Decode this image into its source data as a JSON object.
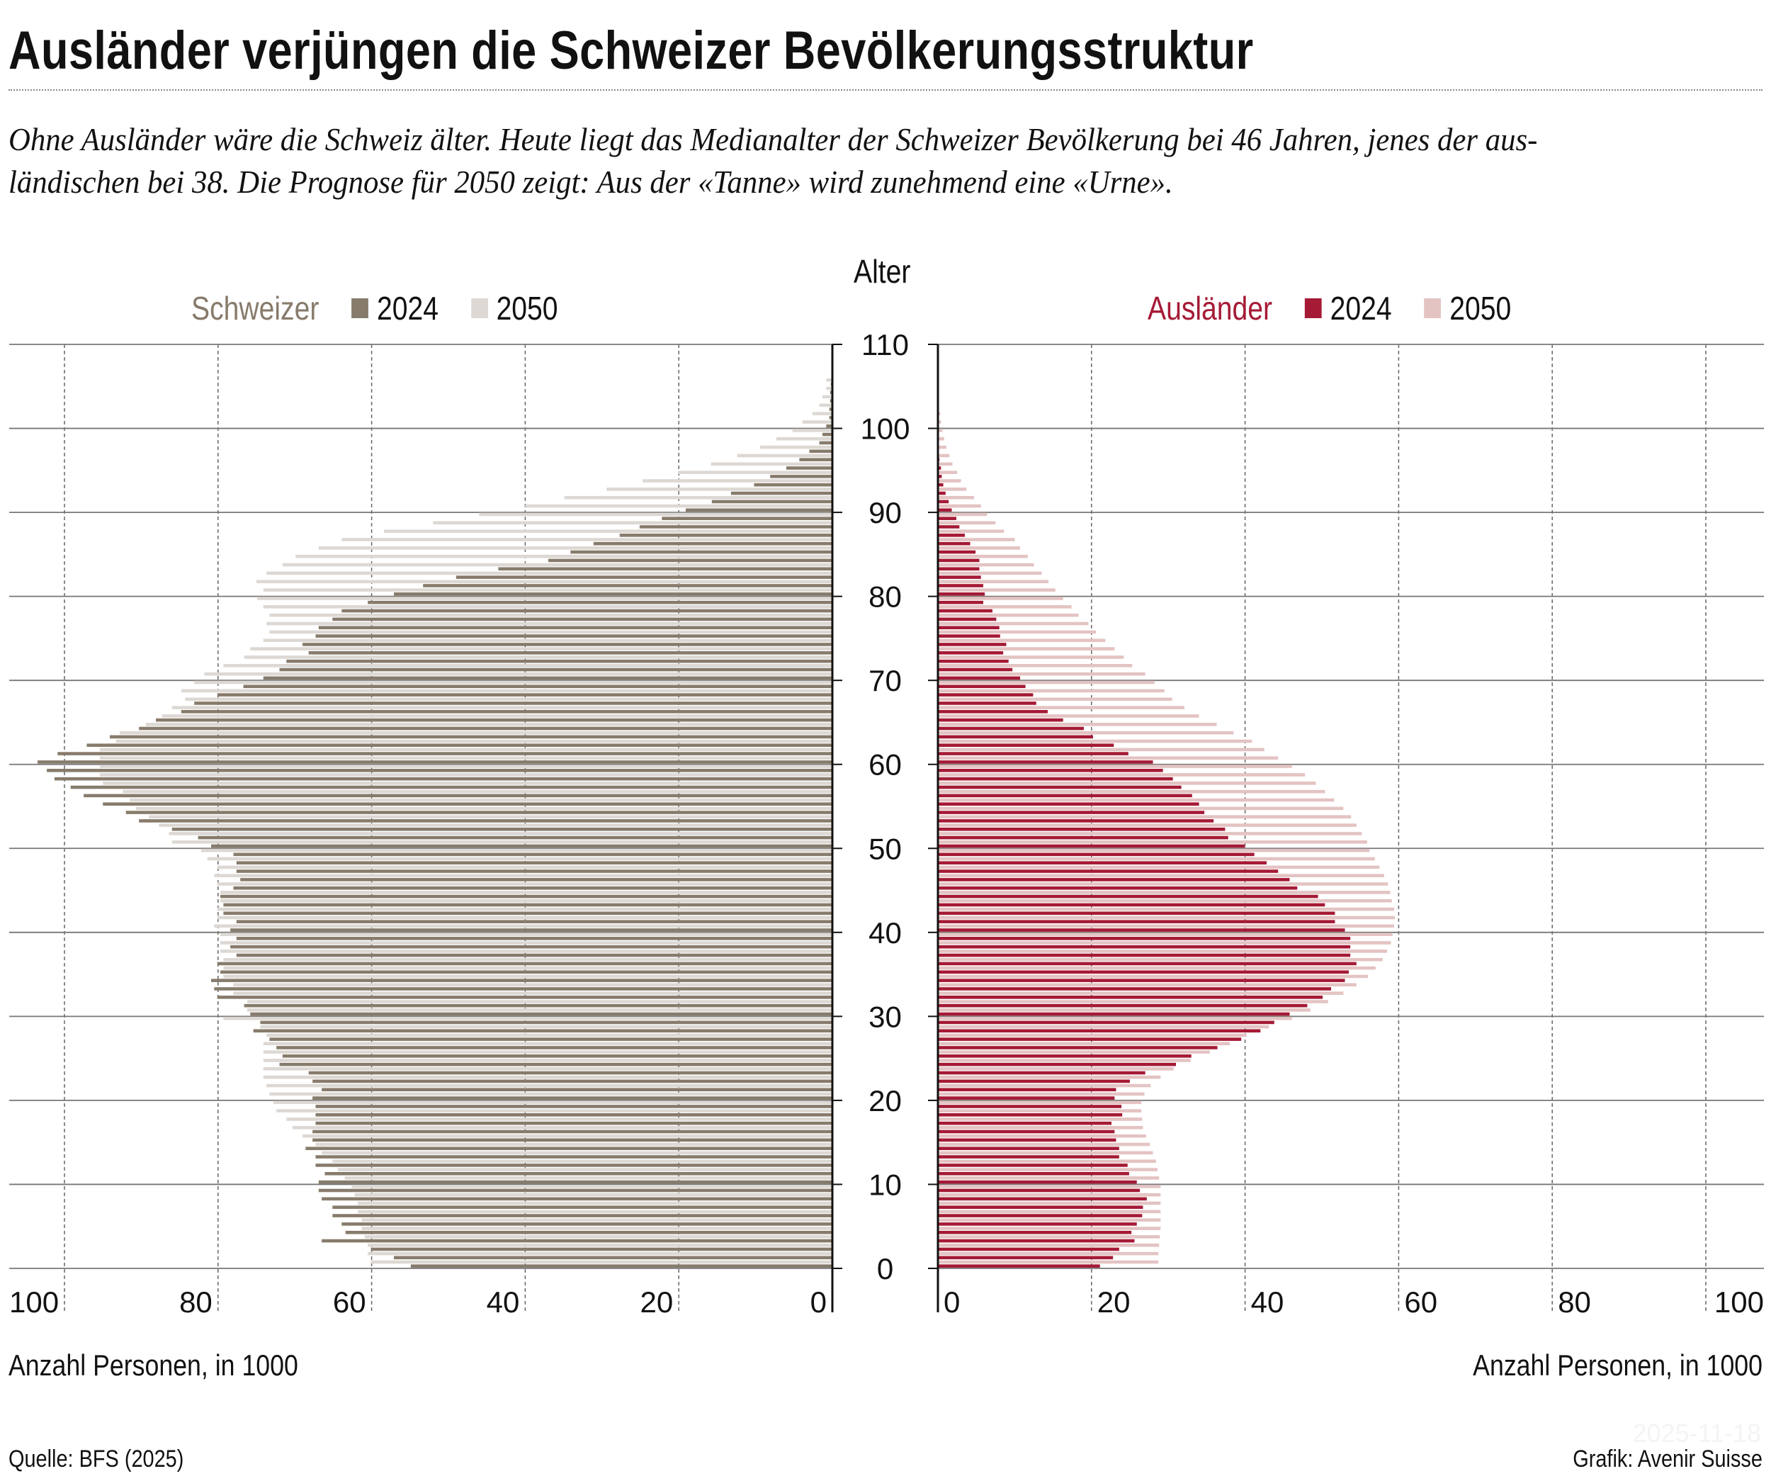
{
  "header": {
    "title": "Ausländer verjüngen die Schweizer Bevölkerungsstruktur",
    "subtitle_lines": [
      "Ohne Ausländer wäre die Schweiz älter. Heute liegt das Medianalter der Schweizer Bevölkerung bei 46 Jahren, jenes der aus-",
      "ländischen bei 38. Die Prognose für 2050 zeigt: Aus der «Tanne» wird zunehmend eine «Urne»."
    ]
  },
  "footer": {
    "source": "Quelle: BFS (2025)",
    "credit": "Grafik: Avenir Suisse",
    "date_watermark": "2025-11-18"
  },
  "chart_data": {
    "type": "bar",
    "orientation": "horizontal",
    "layout": "population-pyramid",
    "y_axis_label": "Alter",
    "y_ticks": [
      0,
      10,
      20,
      30,
      40,
      50,
      60,
      70,
      80,
      90,
      100,
      110
    ],
    "ylim": [
      0,
      110
    ],
    "categories_note": "age in years",
    "categories": [
      0,
      1,
      2,
      3,
      4,
      5,
      6,
      7,
      8,
      9,
      10,
      11,
      12,
      13,
      14,
      15,
      16,
      17,
      18,
      19,
      20,
      21,
      22,
      23,
      24,
      25,
      26,
      27,
      28,
      29,
      30,
      31,
      32,
      33,
      34,
      35,
      36,
      37,
      38,
      39,
      40,
      41,
      42,
      43,
      44,
      45,
      46,
      47,
      48,
      49,
      50,
      51,
      52,
      53,
      54,
      55,
      56,
      57,
      58,
      59,
      60,
      61,
      62,
      63,
      64,
      65,
      66,
      67,
      68,
      69,
      70,
      71,
      72,
      73,
      74,
      75,
      76,
      77,
      78,
      79,
      80,
      81,
      82,
      83,
      84,
      85,
      86,
      87,
      88,
      89,
      90,
      91,
      92,
      93,
      94,
      95,
      96,
      97,
      98,
      99,
      100,
      101,
      102,
      103,
      104,
      105
    ],
    "grid": true,
    "panels": [
      {
        "side": "left",
        "group": "Schweizer",
        "group_color": "#877B6B",
        "xlabel": "Anzahl Personen, in 1000",
        "xlim": [
          0,
          100
        ],
        "x_ticks": [
          100,
          80,
          60,
          40,
          20,
          0
        ],
        "series": [
          {
            "name": "2024",
            "color": "#877B6B",
            "values": [
              54.9,
              57.1,
              60.1,
              66.5,
              63.4,
              63.9,
              65.1,
              65.1,
              66.5,
              66.9,
              66.9,
              66.1,
              67.3,
              67.3,
              68.6,
              67.7,
              67.7,
              67.3,
              67.3,
              67.3,
              67.7,
              66.5,
              67.7,
              68.2,
              72.0,
              71.6,
              72.4,
              73.3,
              75.4,
              74.5,
              75.8,
              76.6,
              80.1,
              80.5,
              80.9,
              79.7,
              80.1,
              77.6,
              78.4,
              77.6,
              78.4,
              77.6,
              79.3,
              79.3,
              79.7,
              78.0,
              77.1,
              77.6,
              77.6,
              78.0,
              80.9,
              82.6,
              86.0,
              90.3,
              92.0,
              95.0,
              97.5,
              99.2,
              101.3,
              102.3,
              103.5,
              100.9,
              97.1,
              94.1,
              90.3,
              88.1,
              84.8,
              83.1,
              80.1,
              76.7,
              74.1,
              72.0,
              71.1,
              68.2,
              69.0,
              67.3,
              66.9,
              65.1,
              63.9,
              60.5,
              57.1,
              53.3,
              49.0,
              43.5,
              37.0,
              34.1,
              31.1,
              27.7,
              25.1,
              22.2,
              19.1,
              15.7,
              13.2,
              10.2,
              8.1,
              6.0,
              4.3,
              3.0,
              1.7,
              1.3,
              0.8,
              0.4,
              0.4,
              0.3,
              0.3,
              0.2
            ]
          },
          {
            "name": "2050",
            "color": "#DDD8D3",
            "values": [
              60.1,
              60.5,
              60.5,
              60.9,
              61.3,
              61.3,
              61.8,
              61.8,
              62.2,
              62.6,
              63.5,
              64.4,
              65.1,
              66.5,
              67.3,
              69.0,
              70.3,
              71.1,
              72.4,
              72.8,
              73.3,
              73.7,
              74.1,
              74.1,
              74.1,
              74.1,
              74.1,
              73.7,
              74.5,
              79.3,
              76.2,
              76.2,
              78.0,
              78.0,
              79.3,
              79.3,
              79.3,
              79.7,
              79.7,
              79.7,
              80.5,
              80.1,
              80.1,
              79.7,
              79.7,
              80.1,
              80.5,
              80.1,
              81.4,
              82.2,
              86.0,
              86.4,
              87.7,
              89.0,
              90.7,
              91.5,
              92.4,
              95.0,
              95.4,
              95.4,
              95.4,
              95.4,
              93.3,
              92.8,
              89.4,
              87.3,
              86.0,
              84.3,
              84.8,
              83.1,
              81.8,
              79.3,
              76.6,
              75.8,
              74.1,
              73.3,
              73.7,
              73.3,
              74.1,
              74.9,
              74.1,
              75.0,
              73.7,
              71.6,
              69.9,
              66.9,
              63.9,
              58.4,
              52.0,
              46.0,
              40.0,
              34.9,
              29.4,
              24.7,
              20.1,
              15.8,
              12.4,
              9.4,
              7.3,
              5.2,
              3.9,
              2.6,
              1.7,
              1.3,
              0.8,
              0.8
            ]
          }
        ]
      },
      {
        "side": "right",
        "group": "Ausländer",
        "group_color": "#A51A35",
        "xlabel": "Anzahl Personen, in 1000",
        "xlim": [
          0,
          100
        ],
        "x_ticks": [
          0,
          20,
          40,
          60,
          80,
          100
        ],
        "series": [
          {
            "name": "2024",
            "color": "#A51A35",
            "values": [
              21.1,
              22.8,
              23.6,
              25.6,
              25.2,
              25.9,
              26.6,
              26.7,
              27.2,
              26.3,
              25.9,
              24.9,
              24.7,
              23.6,
              23.6,
              23.2,
              23.0,
              22.6,
              24.0,
              23.9,
              23.0,
              23.2,
              25.0,
              27.0,
              31.0,
              33.0,
              36.4,
              39.5,
              42.0,
              43.8,
              45.8,
              48.1,
              50.1,
              51.2,
              53.0,
              53.5,
              54.5,
              53.7,
              53.7,
              53.7,
              53.0,
              51.7,
              51.7,
              50.4,
              49.5,
              46.8,
              45.8,
              44.3,
              42.8,
              41.2,
              40.0,
              37.8,
              37.4,
              35.9,
              34.7,
              34.0,
              33.1,
              31.7,
              30.6,
              29.3,
              28.0,
              24.8,
              22.9,
              20.2,
              19.0,
              16.3,
              14.3,
              12.8,
              12.4,
              11.4,
              10.7,
              9.7,
              9.2,
              8.5,
              8.9,
              8.1,
              8.0,
              7.6,
              7.1,
              5.9,
              6.1,
              5.9,
              5.6,
              5.4,
              5.4,
              4.9,
              4.2,
              3.5,
              2.8,
              2.4,
              1.8,
              1.4,
              1.0,
              0.7,
              0.5,
              0.4,
              0.2,
              0.1,
              0,
              0,
              0,
              0,
              0,
              0,
              0,
              0
            ]
          },
          {
            "name": "2050",
            "color": "#E4C3C3",
            "values": [
              28.7,
              28.7,
              28.8,
              28.9,
              29.0,
              29.0,
              29.0,
              29.0,
              29.0,
              29.0,
              28.8,
              28.6,
              28.4,
              28.0,
              27.6,
              27.1,
              26.7,
              26.6,
              26.5,
              26.5,
              26.9,
              27.7,
              29.0,
              30.7,
              32.9,
              35.4,
              38.0,
              40.2,
              43.1,
              46.1,
              48.5,
              50.8,
              52.8,
              54.5,
              56.0,
              57.0,
              57.9,
              58.5,
              59.0,
              59.2,
              59.4,
              59.5,
              59.4,
              59.1,
              58.9,
              58.6,
              58.1,
              57.5,
              56.9,
              56.2,
              55.9,
              55.2,
              54.5,
              53.8,
              52.8,
              51.6,
              50.4,
              49.2,
              47.8,
              46.1,
              44.3,
              42.5,
              40.9,
              38.5,
              36.3,
              34.0,
              32.1,
              30.5,
              29.5,
              28.2,
              27.0,
              25.3,
              24.2,
              23.0,
              21.8,
              20.6,
              19.6,
              18.3,
              17.4,
              16.3,
              15.3,
              14.4,
              13.5,
              12.5,
              11.7,
              10.7,
              10.0,
              8.6,
              7.5,
              6.4,
              5.6,
              4.7,
              3.7,
              3.0,
              2.5,
              1.9,
              1.5,
              1.1,
              0.8,
              0.6,
              0.4,
              0.3,
              0.1,
              0,
              0,
              0
            ]
          }
        ]
      }
    ]
  }
}
